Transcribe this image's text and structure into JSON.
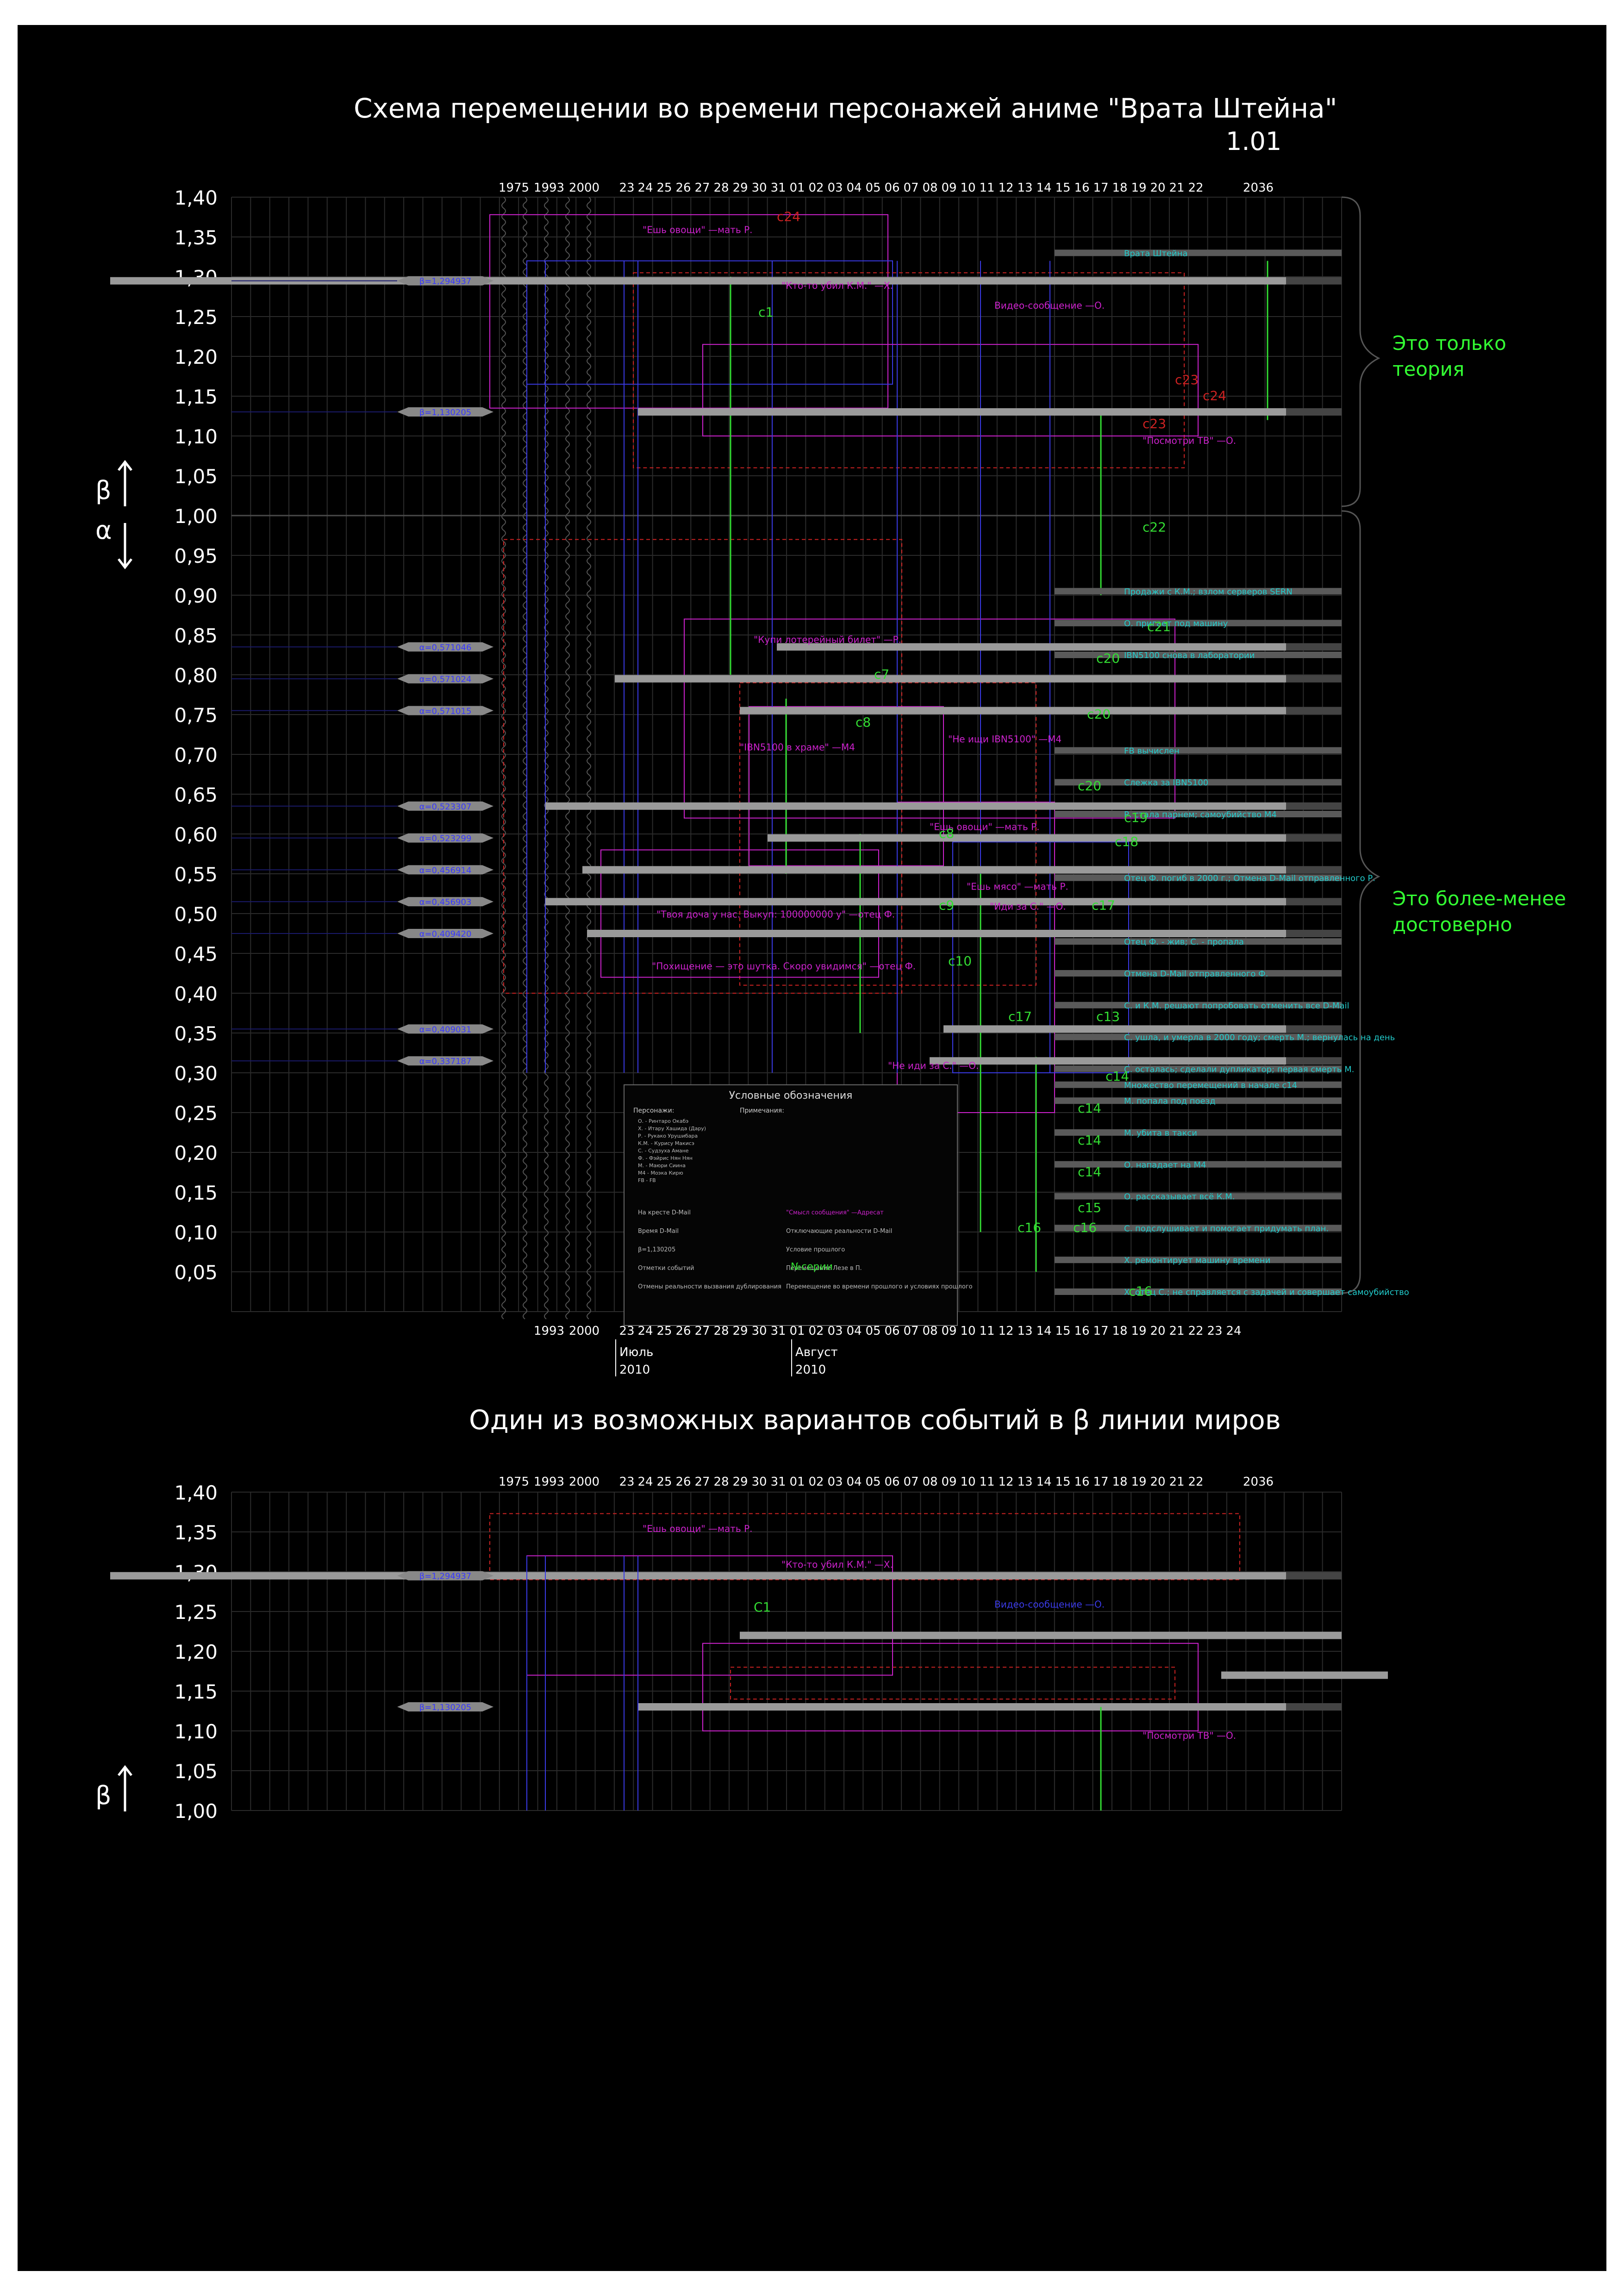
{
  "header": {
    "title": "Схема перемещении во времени персонажей аниме \"Врата Штейна\"",
    "version": "1.01"
  },
  "second_header": {
    "title": "Один из возможных вариантов событий в β линии миров"
  },
  "notes": {
    "theory": [
      "Это только",
      "теория"
    ],
    "reliable": [
      "Это более-менее",
      "достоверно"
    ]
  },
  "axis": {
    "beta_symbol": "β",
    "alpha_symbol": "α",
    "y_ticks_main": [
      "1,40",
      "1,35",
      "1,30",
      "1,25",
      "1,20",
      "1,15",
      "1,10",
      "1,05",
      "1,00",
      "0,95",
      "0,90",
      "0,85",
      "0,80",
      "0,75",
      "0,70",
      "0,65",
      "0,60",
      "0,55",
      "0,50",
      "0,45",
      "0,40",
      "0,35",
      "0,30",
      "0,25",
      "0,20",
      "0,15",
      "0,10",
      "0,05"
    ],
    "y_ticks_second": [
      "1,40",
      "1,35",
      "1,30",
      "1,25",
      "1,20",
      "1,15",
      "1,10",
      "1,05",
      "1,00"
    ],
    "x_top_labels": [
      "1975",
      "1993",
      "2000",
      "23",
      "24",
      "25",
      "26",
      "27",
      "28",
      "29",
      "30",
      "31",
      "01",
      "02",
      "03",
      "04",
      "05",
      "06",
      "07",
      "08",
      "09",
      "10",
      "11",
      "12",
      "13",
      "14",
      "15",
      "16",
      "17",
      "18",
      "19",
      "20",
      "21",
      "22",
      "2036"
    ],
    "x_bottom_labels": [
      "1993",
      "2000",
      "23",
      "24",
      "25",
      "26",
      "27",
      "28",
      "29",
      "30",
      "31",
      "01",
      "02",
      "03",
      "04",
      "05",
      "06",
      "07",
      "08",
      "09",
      "10",
      "11",
      "12",
      "13",
      "14",
      "15",
      "16",
      "17",
      "18",
      "19",
      "20",
      "21",
      "22",
      "23",
      "24"
    ],
    "months": [
      {
        "name": "Июль",
        "year": "2010"
      },
      {
        "name": "Август",
        "year": "2010"
      }
    ]
  },
  "chart_data": {
    "type": "timeline",
    "worldlines": [
      {
        "label": "β=1,294937",
        "y": 1.294937
      },
      {
        "label": "β=1,130205",
        "y": 1.130205
      },
      {
        "label": "α=0,571046",
        "y": 0.835
      },
      {
        "label": "α=0,571024",
        "y": 0.795
      },
      {
        "label": "α=0,571015",
        "y": 0.755
      },
      {
        "label": "α=0,523307",
        "y": 0.635
      },
      {
        "label": "α=0,523299",
        "y": 0.595
      },
      {
        "label": "α=0,456914",
        "y": 0.555
      },
      {
        "label": "α=0,456903",
        "y": 0.515
      },
      {
        "label": "α=0,409420",
        "y": 0.475
      },
      {
        "label": "α=0,409031",
        "y": 0.355
      },
      {
        "label": "α=0,337187",
        "y": 0.315
      }
    ],
    "world_captions": [
      {
        "text": "Врата Штейна",
        "y": 1.33
      },
      {
        "text": "Продажи с К.М.; взлом серверов SERN",
        "y": 0.905
      },
      {
        "text": "О. пригает под машину",
        "y": 0.865
      },
      {
        "text": "IBN5100 снова в лаборатории",
        "y": 0.825
      },
      {
        "text": "FB вычислен",
        "y": 0.705
      },
      {
        "text": "Слежка за IBN5100",
        "y": 0.665
      },
      {
        "text": "Р. стала парнем; самоубийство М4",
        "y": 0.625
      },
      {
        "text": "Отец Ф. погиб в 2000 г.; Отмена D-Mail отправленного Р.",
        "y": 0.545
      },
      {
        "text": "Отец Ф. - жив; С. - пропала",
        "y": 0.465
      },
      {
        "text": "Отмена D-Mail отправленного Ф.",
        "y": 0.425
      },
      {
        "text": "С. и К.М. решают попробовать отменить все D-Mail",
        "y": 0.385
      },
      {
        "text": "С. ушла, и умерла в 2000 году; смерть М.; вернулась на день",
        "y": 0.345
      },
      {
        "text": "С. осталась; сделали дупликатор; первая смерть М.",
        "y": 0.305
      },
      {
        "text": "Множество перемещений в начале с14",
        "y": 0.285
      },
      {
        "text": "М. попала под поезд",
        "y": 0.265
      },
      {
        "text": "М. убита в такси",
        "y": 0.225
      },
      {
        "text": "О. нападает на М4",
        "y": 0.185
      },
      {
        "text": "О. рассказывает всё К.М.",
        "y": 0.145
      },
      {
        "text": "С. подслушивает и помогает придумать план.",
        "y": 0.105
      },
      {
        "text": "Х. ремонтирует машину времени",
        "y": 0.065
      },
      {
        "text": "Х. отец С.; не справляется с задачей и совершает самоубийство",
        "y": 0.025
      }
    ],
    "quotes": [
      {
        "text": "\"Ешь овощи\" —мать Р.",
        "y": 1.355
      },
      {
        "text": "\"Кто-то убил К.М.\" —Х.",
        "y": 1.285
      },
      {
        "text": "Видео-сообщение —О.",
        "y": 1.26
      },
      {
        "text": "\"Посмотри ТВ\" —О.",
        "y": 1.09
      },
      {
        "text": "\"Купи лотерейный билет\" —Р.",
        "y": 0.84
      },
      {
        "text": "\"Не ищи IBN5100\" —М4",
        "y": 0.715
      },
      {
        "text": "\"IBN5100 в храме\" —М4",
        "y": 0.705
      },
      {
        "text": "\"Ешь овощи\" —мать Р.",
        "y": 0.605
      },
      {
        "text": "\"Ешь мясо\" —мать Р.",
        "y": 0.53
      },
      {
        "text": "\"Иди за С.\" —О.",
        "y": 0.505
      },
      {
        "text": "\"Твоя доча у нас. Выкуп: 100000000 у\" —отец Ф.",
        "y": 0.495
      },
      {
        "text": "\"Похищение — это шутка. Скоро увидимся\" —отец Ф.",
        "y": 0.43
      },
      {
        "text": "\"Не иди за С.\" —О.",
        "y": 0.305
      }
    ],
    "markers": [
      {
        "text": "c24",
        "y": 1.37
      },
      {
        "text": "c1",
        "y": 1.25
      },
      {
        "text": "c23",
        "y": 1.165
      },
      {
        "text": "c24",
        "y": 1.145
      },
      {
        "text": "c23",
        "y": 1.11
      },
      {
        "text": "c22",
        "y": 0.98
      },
      {
        "text": "c21",
        "y": 0.855
      },
      {
        "text": "c20",
        "y": 0.815
      },
      {
        "text": "c7",
        "y": 0.795
      },
      {
        "text": "c20",
        "y": 0.745
      },
      {
        "text": "c8",
        "y": 0.735
      },
      {
        "text": "c20",
        "y": 0.655
      },
      {
        "text": "c19",
        "y": 0.615
      },
      {
        "text": "c8",
        "y": 0.595
      },
      {
        "text": "c18",
        "y": 0.585
      },
      {
        "text": "c9",
        "y": 0.505
      },
      {
        "text": "c17",
        "y": 0.505
      },
      {
        "text": "c10",
        "y": 0.435
      },
      {
        "text": "c13",
        "y": 0.365
      },
      {
        "text": "c17",
        "y": 0.365
      },
      {
        "text": "c14",
        "y": 0.29
      },
      {
        "text": "c14",
        "y": 0.25
      },
      {
        "text": "c14",
        "y": 0.21
      },
      {
        "text": "c14",
        "y": 0.17
      },
      {
        "text": "c15",
        "y": 0.125
      },
      {
        "text": "c16",
        "y": 0.1
      },
      {
        "text": "c16",
        "y": 0.1
      },
      {
        "text": "c16",
        "y": 0.02
      }
    ]
  },
  "legend": {
    "title": "Условные обозначения",
    "characters_title": "Персонажи:",
    "characters": [
      "О. - Ринтаро Окабэ",
      "Х. - Итару Хашида (Дару)",
      "Р. - Рукако Урушибара",
      "К.М. - Курису Макисэ",
      "С. - Судзуха Амане",
      "Ф. - Фэйрис Нян Нян",
      "М. - Маюри Сиина",
      "М4 - Моэка Кирю",
      "FB - FB"
    ],
    "notes_title": "Примечания:",
    "labels": [
      "На кресте D-Mail",
      "\"Смысл сообщения\" —Адресат",
      "Время D-Mail",
      "Отключающие реальности D-Mail",
      "β=1,130205",
      "Условие прошлого",
      "Отметки событий",
      "Перемещение Лезе в П.",
      "Отмены реальности вызвания дублирования",
      "Перемещение во времени прошлого и условиях прошлого"
    ],
    "series_label": "№серии"
  },
  "second_chart": {
    "worldlines": [
      {
        "label": "β=1,294937",
        "y": 1.294937
      },
      {
        "label": "β=1,130205",
        "y": 1.130205
      }
    ],
    "quotes": [
      {
        "text": "\"Ешь овощи\" —мать Р.",
        "y": 1.35
      },
      {
        "text": "\"Кто-то убил К.М.\" —Х.",
        "y": 1.305
      },
      {
        "text": "Видео-сообщение —О.",
        "y": 1.255
      },
      {
        "text": "\"Посмотри ТВ\" —О.",
        "y": 1.09
      }
    ],
    "markers": [
      {
        "text": "C1",
        "y": 1.25
      }
    ]
  },
  "colors": {
    "grid": "#2b2b2b",
    "bar": "#9a9a9a",
    "blue": "#3a3ae6",
    "green": "#33dd33",
    "magenta": "#cc22cc",
    "red": "#cc2222",
    "cyan": "#22cccc"
  }
}
